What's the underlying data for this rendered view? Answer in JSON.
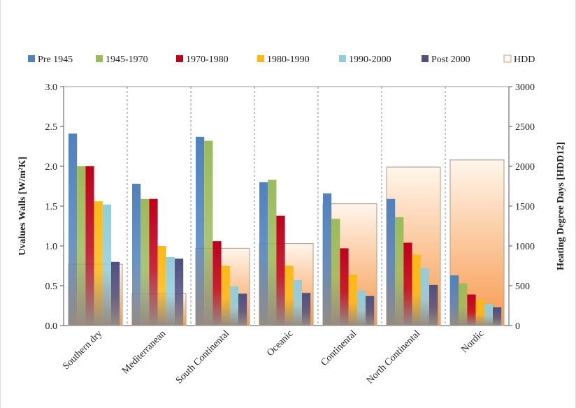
{
  "chart_data": {
    "type": "bar",
    "title": "",
    "xlabel": "",
    "ylabel": "Uvalues Walls [W/m²K]",
    "y2label": "Heating Degree Days [HDD12]",
    "ylim": [
      0,
      3.0
    ],
    "y2lim": [
      0,
      3000
    ],
    "yticks": [
      "0.0",
      "0.5",
      "1.0",
      "1.5",
      "2.0",
      "2.5",
      "3.0"
    ],
    "y2ticks": [
      "0",
      "500",
      "1000",
      "1500",
      "2000",
      "2500",
      "3000"
    ],
    "legend_position": "top",
    "categories": [
      "Southern dry",
      "Mediterranean",
      "South Continental",
      "Oceanic",
      "Continental",
      "North Continental",
      "Nordic"
    ],
    "series": [
      {
        "name": "Pre 1945",
        "color": "#4f81bd",
        "values": [
          2.41,
          1.78,
          2.37,
          1.8,
          1.66,
          1.59,
          0.63
        ]
      },
      {
        "name": "1945-1970",
        "color": "#9bbb59",
        "values": [
          2.0,
          1.59,
          2.32,
          1.83,
          1.34,
          1.36,
          0.53
        ]
      },
      {
        "name": "1970-1980",
        "color": "#c0001c",
        "values": [
          2.0,
          1.59,
          1.06,
          1.38,
          0.97,
          1.04,
          0.39
        ]
      },
      {
        "name": "1980-1990",
        "color": "#fdb913",
        "values": [
          1.56,
          1.0,
          0.75,
          0.75,
          0.64,
          0.89,
          0.32
        ]
      },
      {
        "name": "1990-2000",
        "color": "#92cddc",
        "values": [
          1.52,
          0.86,
          0.49,
          0.57,
          0.44,
          0.72,
          0.27
        ]
      },
      {
        "name": "Post 2000",
        "color": "#4f4f7f",
        "values": [
          0.8,
          0.84,
          0.4,
          0.41,
          0.37,
          0.51,
          0.23
        ]
      }
    ],
    "hdd": {
      "name": "HDD",
      "color": "#f79646",
      "values": [
        770,
        400,
        970,
        1030,
        1530,
        1990,
        2080
      ]
    }
  }
}
